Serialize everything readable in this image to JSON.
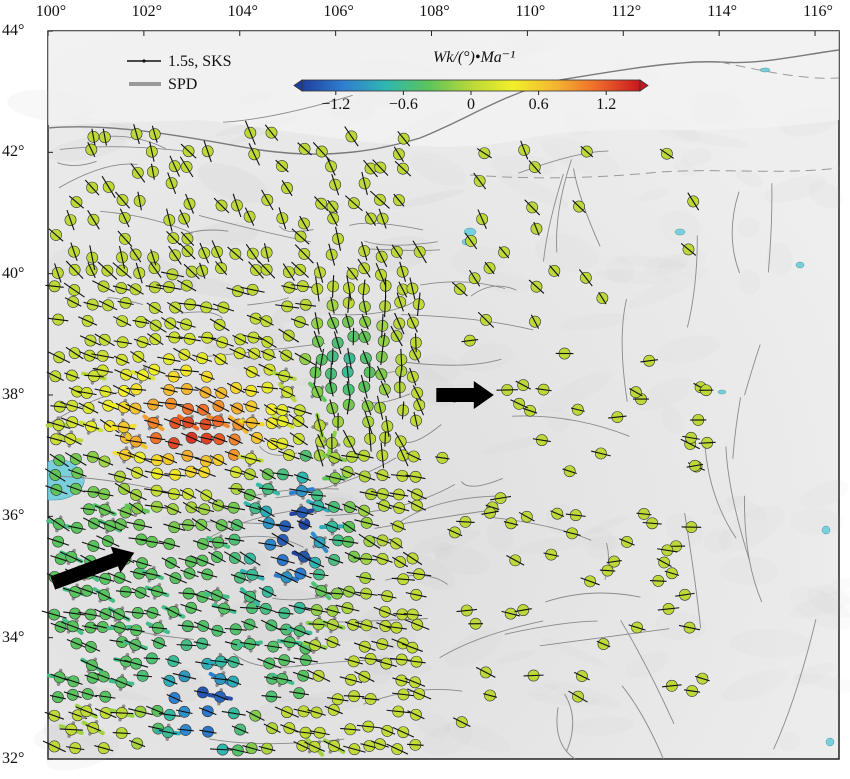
{
  "legend": {
    "sks_label": "1.5s, SKS",
    "spd_label": "SPD"
  },
  "colorbar": {
    "title": "Wk/(°)•Ma⁻¹",
    "min": -1.5,
    "max": 1.5,
    "ticks": [
      {
        "value": -1.2,
        "label": "−1.2"
      },
      {
        "value": -0.6,
        "label": "−0.6"
      },
      {
        "value": 0,
        "label": "0"
      },
      {
        "value": 0.6,
        "label": "0.6"
      },
      {
        "value": 1.2,
        "label": "1.2"
      }
    ],
    "colors": [
      "#1f3f9e",
      "#2f7fd0",
      "#2fb7b0",
      "#5cc45a",
      "#b9d83a",
      "#f2ef2a",
      "#f4b530",
      "#ee6a2a",
      "#c8161e"
    ]
  },
  "axes": {
    "x_ticks": [
      {
        "value": 100,
        "label": "100°"
      },
      {
        "value": 102,
        "label": "102°"
      },
      {
        "value": 104,
        "label": "104°"
      },
      {
        "value": 106,
        "label": "106°"
      },
      {
        "value": 108,
        "label": "108°"
      },
      {
        "value": 110,
        "label": "110°"
      },
      {
        "value": 112,
        "label": "112°"
      },
      {
        "value": 114,
        "label": "114°"
      },
      {
        "value": 116,
        "label": "116°"
      }
    ],
    "y_ticks": [
      {
        "value": 44,
        "label": "44°"
      },
      {
        "value": 42,
        "label": "42°"
      },
      {
        "value": 40,
        "label": "40°"
      },
      {
        "value": 38,
        "label": "38°"
      },
      {
        "value": 36,
        "label": "36°"
      },
      {
        "value": 34,
        "label": "34°"
      },
      {
        "value": 32,
        "label": "32°"
      }
    ],
    "lon_range": [
      100,
      116.5
    ],
    "lat_range": [
      32,
      44
    ]
  },
  "arrows": [
    {
      "name": "east-arrow",
      "from": [
        108.1,
        38.0
      ],
      "to": [
        109.3,
        38.0
      ]
    },
    {
      "name": "northeast-arrow",
      "from": [
        100.1,
        34.9
      ],
      "to": [
        101.8,
        35.4
      ]
    }
  ],
  "colors": {
    "background": "#e9e9e9",
    "lake": "#79cfdc",
    "fault": "#8a8a8a",
    "border": "#9a9a9a"
  }
}
